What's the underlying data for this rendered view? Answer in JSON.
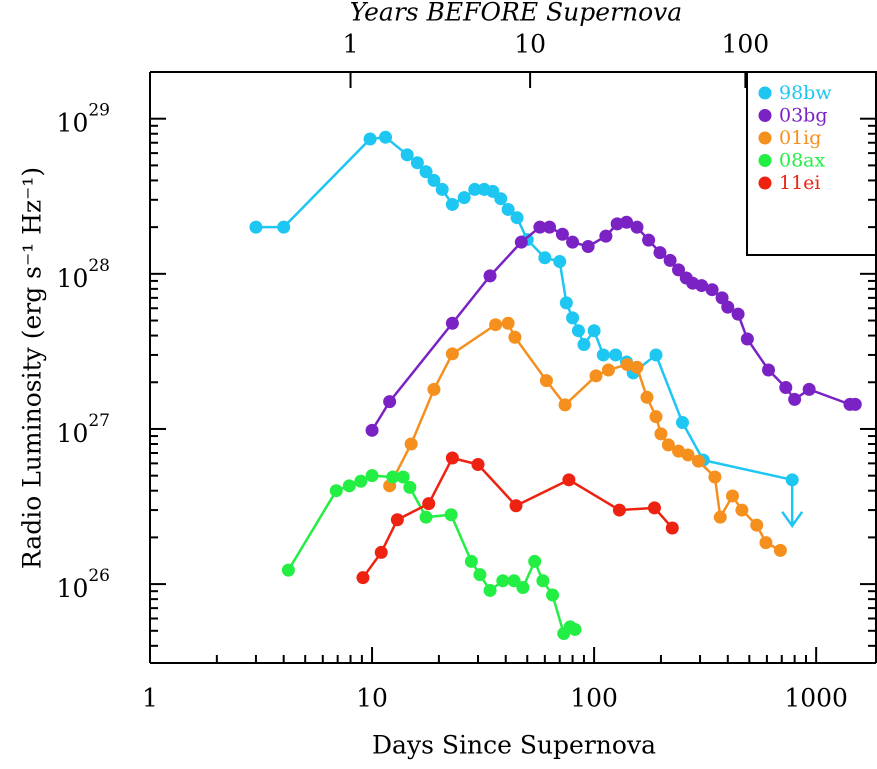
{
  "chart_data": {
    "type": "line",
    "xlabel": "Days Since Supernova",
    "x2label": "Years BEFORE Supernova",
    "ylabel": "Radio Luminosity (erg s⁻¹ Hz⁻¹)",
    "xscale": "log",
    "yscale": "log",
    "xlim": [
      1,
      1860
    ],
    "ylim": [
      3.1e+25,
      2e+29
    ],
    "xticks": [
      1,
      10,
      100,
      1000
    ],
    "x2ticks": [
      {
        "value": 8,
        "label": "1"
      },
      {
        "value": 51.5,
        "label": "10"
      },
      {
        "value": 480,
        "label": "100"
      }
    ],
    "yticks": [
      {
        "value": 1e+26,
        "label": "10",
        "exponent": "26"
      },
      {
        "value": 1e+27,
        "label": "10",
        "exponent": "27"
      },
      {
        "value": 1e+28,
        "label": "10",
        "exponent": "28"
      },
      {
        "value": 1e+29,
        "label": "10",
        "exponent": "29"
      }
    ],
    "legend": "upper right",
    "series": [
      {
        "name": "98bw",
        "color": "#1ec6f2",
        "x": [
          3.0,
          4.0,
          9.8,
          11.5,
          14.4,
          16,
          17.5,
          19,
          20.7,
          23,
          26,
          29,
          32,
          35,
          38,
          41,
          45,
          50,
          60,
          70,
          75,
          80,
          85,
          90,
          100,
          110,
          125,
          140,
          150,
          190,
          250,
          310,
          780
        ],
        "values": [
          2e+28,
          2e+28,
          7.4e+28,
          7.6e+28,
          5.85e+28,
          5.2e+28,
          4.55e+28,
          4e+28,
          3.5e+28,
          2.8e+28,
          3.1e+28,
          3.5e+28,
          3.5e+28,
          3.4e+28,
          3.05e+28,
          2.6e+28,
          2.3e+28,
          1.66e+28,
          1.27e+28,
          1.2e+28,
          6.5e+27,
          5.2e+27,
          4.3e+27,
          3.5e+27,
          4.3e+27,
          3e+27,
          3e+27,
          2.7e+27,
          2.3e+27,
          3e+27,
          1.1e+27,
          6.3e+26,
          4.7e+26
        ]
      },
      {
        "name": "03bg",
        "color": "#7b22c4",
        "x": [
          10,
          12,
          23,
          34,
          47,
          57,
          63,
          72,
          80,
          94,
          113,
          127,
          140,
          156,
          176,
          198,
          220,
          240,
          260,
          278,
          305,
          340,
          377,
          400,
          445,
          490,
          610,
          730,
          800,
          930,
          1420,
          1500
        ],
        "values": [
          9.8e+26,
          1.5e+27,
          4.8e+27,
          9.7e+27,
          1.6e+28,
          2e+28,
          2e+28,
          1.8e+28,
          1.6e+28,
          1.5e+28,
          1.75e+28,
          2.1e+28,
          2.15e+28,
          2e+28,
          1.65e+28,
          1.37e+28,
          1.22e+28,
          1.06e+28,
          9.4e+27,
          8.7e+27,
          8.4e+27,
          7.9e+27,
          7e+27,
          6.1e+27,
          5.5e+27,
          3.8e+27,
          2.4e+27,
          1.85e+27,
          1.55e+27,
          1.8e+27,
          1.44e+27,
          1.44e+27
        ]
      },
      {
        "name": "01ig",
        "color": "#f5901e",
        "x": [
          12,
          15,
          19,
          23,
          36,
          41,
          44,
          61,
          74,
          102,
          116,
          141,
          156,
          173,
          190,
          200,
          216,
          240,
          265,
          295,
          350,
          370,
          420,
          463,
          540,
          594,
          690
        ],
        "values": [
          4.3e+26,
          8e+26,
          1.8e+27,
          3.05e+27,
          4.7e+27,
          4.8e+27,
          3.9e+27,
          2.05e+27,
          1.43e+27,
          2.2e+27,
          2.4e+27,
          2.6e+27,
          2.5e+27,
          1.6e+27,
          1.2e+27,
          9.3e+26,
          7.9e+26,
          7.2e+26,
          6.8e+26,
          6.2e+26,
          4.9e+26,
          2.7e+26,
          3.7e+26,
          3e+26,
          2.4e+26,
          1.85e+26,
          1.65e+26
        ]
      },
      {
        "name": "08ax",
        "color": "#22ee44",
        "x": [
          4.2,
          6.9,
          7.9,
          8.9,
          10,
          12.4,
          13.8,
          14.8,
          17.5,
          22.7,
          28,
          30.6,
          34,
          38.8,
          43.6,
          47.8,
          54,
          58.8,
          65,
          73,
          78,
          82
        ],
        "values": [
          1.23e+26,
          4e+26,
          4.3e+26,
          4.6e+26,
          5e+26,
          4.9e+26,
          4.9e+26,
          4.2e+26,
          2.7e+26,
          2.8e+26,
          1.4e+26,
          1.15e+26,
          9.1e+25,
          1.05e+26,
          1.05e+26,
          9.5e+25,
          1.4e+26,
          1.05e+26,
          8.5e+25,
          4.8e+25,
          5.3e+25,
          5.1e+25
        ]
      },
      {
        "name": "11ei",
        "color": "#ee2211",
        "x": [
          9.1,
          11,
          13,
          18,
          23,
          30,
          44.5,
          77,
          130,
          187,
          225
        ],
        "values": [
          1.1e+26,
          1.6e+26,
          2.6e+26,
          3.3e+26,
          6.5e+26,
          5.9e+26,
          3.2e+26,
          4.7e+26,
          3e+26,
          3.1e+26,
          2.3e+26
        ]
      }
    ]
  }
}
